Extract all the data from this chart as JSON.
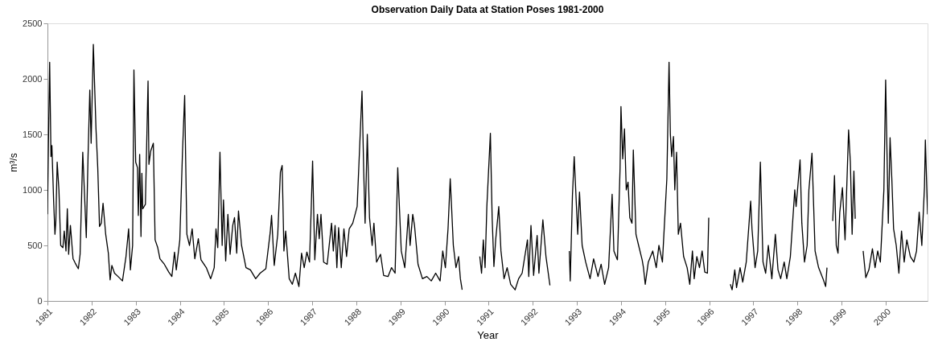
{
  "chart_data": {
    "type": "line",
    "title": "Observation Daily Data at Station Poses 1981-2000",
    "xlabel": "Year",
    "ylabel": "m³/s",
    "x": [
      1981.0,
      1981.02,
      1981.05,
      1981.08,
      1981.1,
      1981.14,
      1981.17,
      1981.19,
      1981.22,
      1981.26,
      1981.3,
      1981.35,
      1981.38,
      1981.42,
      1981.45,
      1981.48,
      1981.52,
      1981.58,
      1981.63,
      1981.7,
      1981.74,
      1981.8,
      1981.84,
      1981.88,
      1981.92,
      1981.96,
      1981.99,
      1982.04,
      1982.1,
      1982.14,
      1982.18,
      1982.22,
      1982.26,
      1982.32,
      1982.38,
      1982.42,
      1982.46,
      1982.52,
      1982.6,
      1982.7,
      1982.78,
      1982.84,
      1982.88,
      1982.93,
      1982.96,
      1983.0,
      1983.04,
      1983.06,
      1983.09,
      1983.12,
      1983.14,
      1983.16,
      1983.22,
      1983.28,
      1983.3,
      1983.34,
      1983.4,
      1983.44,
      1983.5,
      1983.55,
      1983.65,
      1983.75,
      1983.82,
      1983.88,
      1983.92,
      1984.0,
      1984.06,
      1984.11,
      1984.16,
      1984.22,
      1984.28,
      1984.34,
      1984.42,
      1984.48,
      1984.6,
      1984.7,
      1984.78,
      1984.82,
      1984.86,
      1984.91,
      1984.96,
      1984.99,
      1985.04,
      1985.09,
      1985.14,
      1985.2,
      1985.24,
      1985.29,
      1985.33,
      1985.4,
      1985.5,
      1985.6,
      1985.72,
      1985.82,
      1985.95,
      1986.05,
      1986.08,
      1986.14,
      1986.22,
      1986.28,
      1986.32,
      1986.36,
      1986.4,
      1986.48,
      1986.55,
      1986.62,
      1986.7,
      1986.76,
      1986.82,
      1986.88,
      1986.94,
      1986.98,
      1987.01,
      1987.06,
      1987.12,
      1987.16,
      1987.2,
      1987.26,
      1987.34,
      1987.44,
      1987.48,
      1987.52,
      1987.56,
      1987.6,
      1987.66,
      1987.72,
      1987.78,
      1987.84,
      1987.92,
      1988.02,
      1988.13,
      1988.17,
      1988.2,
      1988.25,
      1988.3,
      1988.36,
      1988.4,
      1988.46,
      1988.55,
      1988.62,
      1988.72,
      1988.8,
      1988.88,
      1988.94,
      1989.02,
      1989.1,
      1989.18,
      1989.22,
      1989.28,
      1989.32,
      1989.4,
      1989.5,
      1989.6,
      1989.7,
      1989.8,
      1989.9,
      1989.96,
      1990.02,
      1990.08,
      1990.13,
      1990.16,
      1990.2,
      1990.26,
      1990.32,
      1990.36,
      1990.4,
      1990.6,
      1990.8,
      1990.84,
      1990.88,
      1990.92,
      1990.96,
      1991.04,
      1991.08,
      1991.12,
      1991.16,
      1991.23,
      1991.28,
      1991.35,
      1991.42,
      1991.5,
      1991.6,
      1991.68,
      1991.76,
      1991.88,
      1991.91,
      1991.96,
      1992.02,
      1992.1,
      1992.14,
      1992.23,
      1992.3,
      1992.39,
      1992.6,
      1992.83,
      1992.85,
      1992.9,
      1992.94,
      1993.02,
      1993.06,
      1993.12,
      1993.2,
      1993.3,
      1993.38,
      1993.48,
      1993.55,
      1993.63,
      1993.72,
      1993.8,
      1993.84,
      1993.92,
      1993.98,
      1994.0,
      1994.04,
      1994.08,
      1994.12,
      1994.16,
      1994.2,
      1994.25,
      1994.28,
      1994.34,
      1994.4,
      1994.48,
      1994.51,
      1994.55,
      1994.62,
      1994.72,
      1994.8,
      1994.86,
      1994.94,
      1995.0,
      1995.04,
      1995.09,
      1995.12,
      1995.15,
      1995.19,
      1995.22,
      1995.26,
      1995.3,
      1995.35,
      1995.42,
      1995.5,
      1995.56,
      1995.62,
      1995.66,
      1995.72,
      1995.78,
      1995.84,
      1995.9,
      1995.96,
      1995.99,
      1996.2,
      1996.48,
      1996.52,
      1996.58,
      1996.62,
      1996.7,
      1996.76,
      1996.84,
      1996.94,
      1996.97,
      1997.04,
      1997.1,
      1997.16,
      1997.22,
      1997.28,
      1997.34,
      1997.42,
      1997.5,
      1997.56,
      1997.62,
      1997.7,
      1997.76,
      1997.84,
      1997.94,
      1997.97,
      1998.06,
      1998.1,
      1998.16,
      1998.22,
      1998.26,
      1998.33,
      1998.4,
      1998.48,
      1998.58,
      1998.64,
      1998.67,
      1998.74,
      1998.8,
      1998.84,
      1998.88,
      1998.92,
      1998.96,
      1999.02,
      1999.08,
      1999.16,
      1999.2,
      1999.24,
      1999.28,
      1999.31,
      1999.4,
      1999.49,
      1999.55,
      1999.62,
      1999.7,
      1999.76,
      1999.82,
      1999.88,
      1999.96,
      2000.0,
      2000.06,
      2000.1,
      2000.14,
      2000.18,
      2000.24,
      2000.3,
      2000.36,
      2000.42,
      2000.48,
      2000.56,
      2000.64,
      2000.7,
      2000.76,
      2000.82,
      2000.88,
      2000.9,
      2000.95
    ],
    "values": [
      780,
      1370,
      2150,
      1300,
      1400,
      900,
      600,
      720,
      1250,
      1000,
      500,
      480,
      630,
      450,
      830,
      420,
      680,
      380,
      340,
      290,
      420,
      1340,
      960,
      570,
      1300,
      1900,
      1420,
      2310,
      1550,
      1200,
      670,
      700,
      880,
      600,
      430,
      190,
      320,
      250,
      220,
      180,
      400,
      650,
      280,
      500,
      2080,
      1250,
      1200,
      770,
      1320,
      580,
      1150,
      830,
      870,
      1980,
      1230,
      1350,
      1420,
      550,
      480,
      380,
      330,
      260,
      220,
      440,
      280,
      550,
      1330,
      1850,
      600,
      500,
      650,
      380,
      560,
      370,
      300,
      200,
      300,
      650,
      480,
      1340,
      500,
      910,
      360,
      780,
      420,
      680,
      750,
      430,
      810,
      500,
      300,
      280,
      200,
      250,
      290,
      620,
      770,
      320,
      600,
      1160,
      1220,
      450,
      630,
      200,
      150,
      250,
      130,
      430,
      300,
      440,
      350,
      850,
      1260,
      370,
      780,
      560,
      780,
      350,
      330,
      700,
      450,
      680,
      300,
      660,
      300,
      650,
      400,
      650,
      700,
      850,
      1890,
      1150,
      700,
      1500,
      750,
      500,
      700,
      350,
      420,
      230,
      220,
      300,
      250,
      1200,
      450,
      300,
      780,
      500,
      780,
      680,
      330,
      200,
      220,
      180,
      250,
      180,
      450,
      300,
      650,
      1100,
      850,
      500,
      300,
      400,
      200,
      100,
      null,
      400,
      250,
      550,
      300,
      850,
      1510,
      750,
      310,
      550,
      850,
      450,
      200,
      300,
      150,
      100,
      200,
      250,
      550,
      220,
      680,
      230,
      590,
      250,
      730,
      400,
      140,
      null,
      450,
      180,
      950,
      1300,
      600,
      980,
      500,
      350,
      200,
      380,
      220,
      330,
      150,
      300,
      960,
      450,
      370,
      1200,
      1750,
      1280,
      1550,
      1000,
      1070,
      750,
      700,
      1360,
      600,
      500,
      370,
      300,
      150,
      350,
      450,
      300,
      500,
      350,
      800,
      1100,
      2150,
      1500,
      1300,
      1480,
      1000,
      1340,
      600,
      700,
      400,
      300,
      150,
      450,
      200,
      400,
      300,
      450,
      260,
      250,
      750,
      null,
      150,
      100,
      280,
      120,
      300,
      170,
      350,
      900,
      650,
      300,
      450,
      1250,
      350,
      250,
      500,
      200,
      600,
      280,
      200,
      350,
      200,
      400,
      1000,
      850,
      1270,
      700,
      350,
      500,
      1000,
      1330,
      450,
      300,
      200,
      130,
      300,
      null,
      720,
      1130,
      500,
      430,
      800,
      1020,
      550,
      1540,
      1250,
      600,
      1170,
      740,
      null,
      450,
      210,
      280,
      470,
      300,
      450,
      350,
      1000,
      1990,
      700,
      1470,
      1100,
      650,
      500,
      250,
      630,
      350,
      550,
      400,
      350,
      450,
      800,
      500,
      1030,
      1450,
      780
    ],
    "color": "#000000",
    "line_style": "solid",
    "marker": "none",
    "grid": false,
    "xlim": [
      1981,
      2000.95
    ],
    "ylim": [
      0,
      2500
    ],
    "xticks": [
      1981,
      1982,
      1983,
      1984,
      1985,
      1986,
      1987,
      1988,
      1989,
      1990,
      1991,
      1992,
      1993,
      1994,
      1995,
      1996,
      1997,
      1998,
      1999,
      2000
    ],
    "yticks": [
      0,
      500,
      1000,
      1500,
      2000,
      2500
    ]
  }
}
